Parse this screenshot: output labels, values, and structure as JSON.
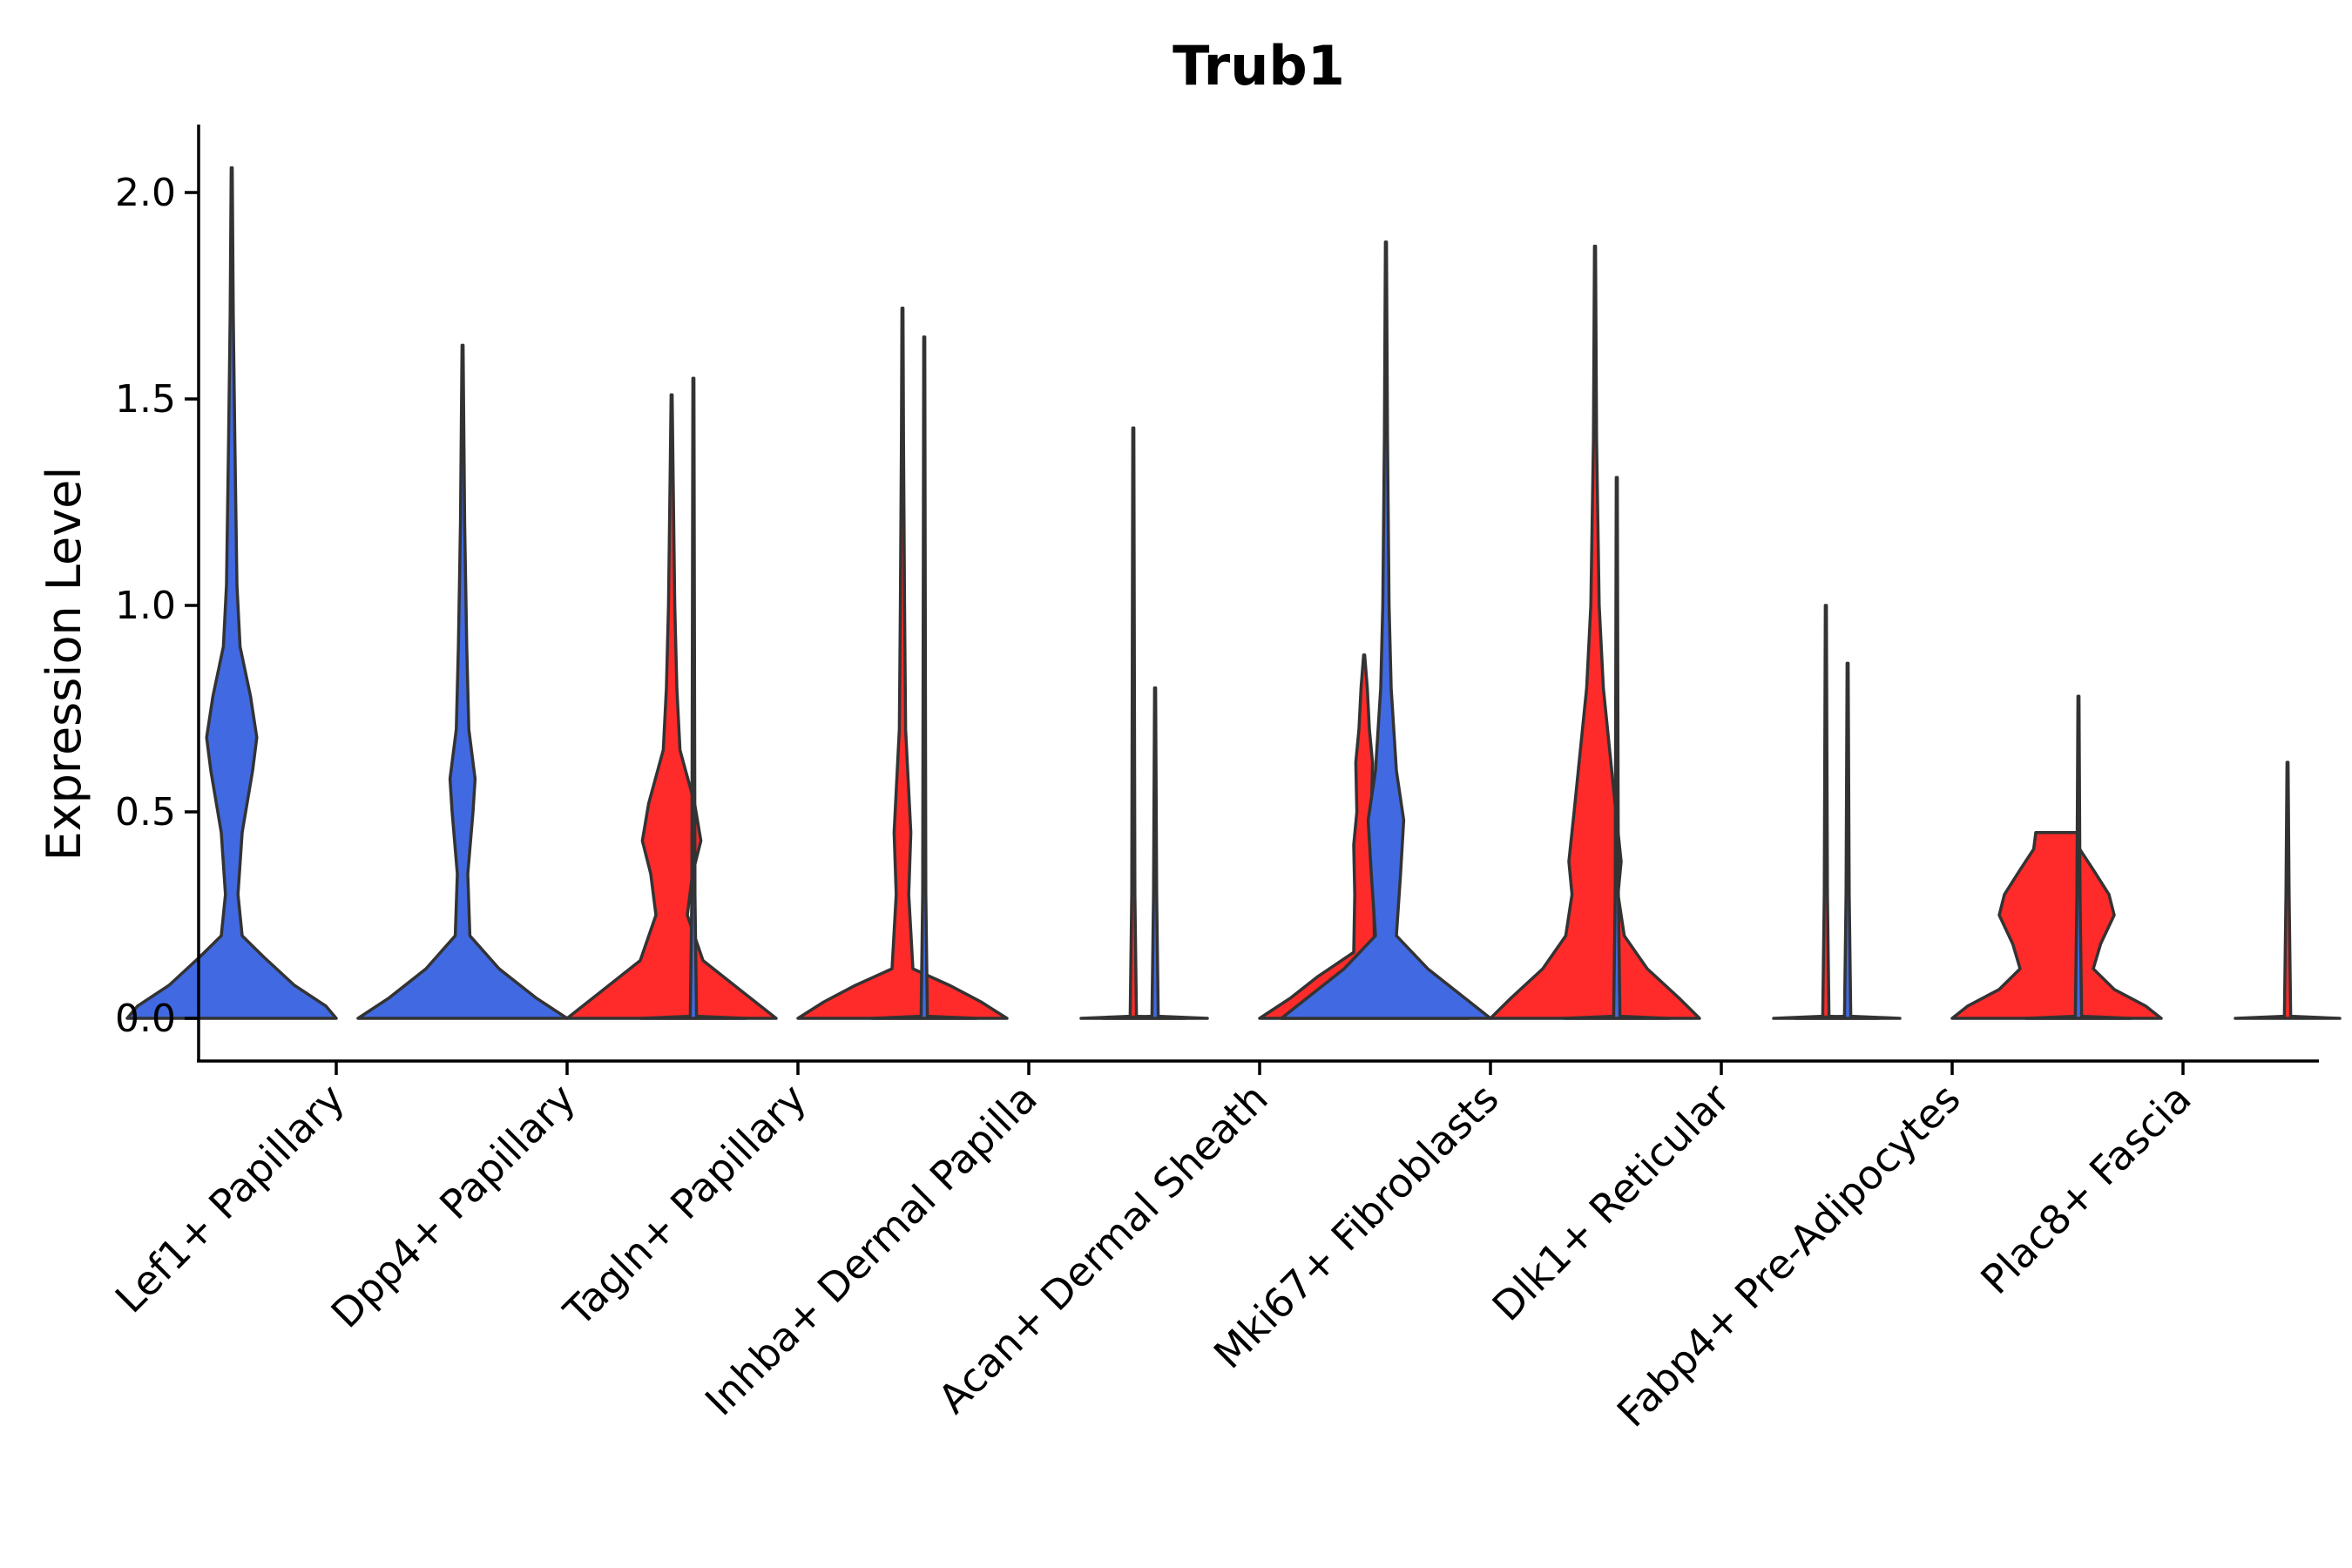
{
  "chart_data": {
    "type": "violin",
    "title": "Trub1",
    "xlabel": "",
    "ylabel": "Expression Level",
    "ylim": [
      -0.1,
      2.17
    ],
    "yticks": [
      0.0,
      0.5,
      1.0,
      1.5,
      2.0
    ],
    "ytick_labels": [
      "0.0",
      "0.5",
      "1.0",
      "1.5",
      "2.0"
    ],
    "groups": [
      "blue",
      "red"
    ],
    "colors": {
      "blue": "#4169E1",
      "red": "#FF2A2A",
      "outline": "#333333"
    },
    "categories": [
      "Lef1+ Papillary",
      "Dpp4+ Papillary",
      "Tagln+ Papillary",
      "Inhba+ Dermal Papilla",
      "Acan+ Dermal Sheath",
      "Mki67+ Fibroblasts",
      "Dlk1+ Reticular",
      "Fabp4+ Pre-Adipocytes",
      "Plac8+ Fascia"
    ],
    "series": [
      {
        "name": "blue",
        "max_values": [
          2.06,
          1.63,
          1.55,
          1.65,
          0.8,
          1.88,
          1.31,
          0.86,
          0.78
        ]
      },
      {
        "name": "red",
        "max_values": [
          null,
          1.51,
          1.72,
          1.43,
          0.88,
          1.87,
          1.0,
          0.45,
          0.62
        ]
      }
    ],
    "violins": [
      {
        "category": 0,
        "group": "blue",
        "max": 2.06,
        "density": [
          [
            0,
            1.0
          ],
          [
            0.03,
            0.9
          ],
          [
            0.08,
            0.6
          ],
          [
            0.15,
            0.3
          ],
          [
            0.2,
            0.1
          ],
          [
            0.3,
            0.06
          ],
          [
            0.45,
            0.1
          ],
          [
            0.6,
            0.2
          ],
          [
            0.68,
            0.24
          ],
          [
            0.78,
            0.18
          ],
          [
            0.9,
            0.08
          ],
          [
            1.05,
            0.05
          ],
          [
            1.4,
            0.03
          ],
          [
            1.7,
            0.015
          ],
          [
            2.06,
            0.005
          ]
        ]
      },
      {
        "category": 1,
        "group": "blue",
        "max": 1.63,
        "density": [
          [
            0,
            1.0
          ],
          [
            0.05,
            0.7
          ],
          [
            0.12,
            0.35
          ],
          [
            0.2,
            0.07
          ],
          [
            0.35,
            0.05
          ],
          [
            0.5,
            0.1
          ],
          [
            0.58,
            0.12
          ],
          [
            0.7,
            0.06
          ],
          [
            0.9,
            0.04
          ],
          [
            1.2,
            0.02
          ],
          [
            1.63,
            0.005
          ]
        ]
      },
      {
        "category": 1,
        "group": "red",
        "max": 1.51,
        "density": [
          [
            0,
            1.0
          ],
          [
            0.06,
            0.7
          ],
          [
            0.14,
            0.3
          ],
          [
            0.25,
            0.15
          ],
          [
            0.35,
            0.2
          ],
          [
            0.43,
            0.28
          ],
          [
            0.52,
            0.22
          ],
          [
            0.65,
            0.08
          ],
          [
            0.8,
            0.05
          ],
          [
            1.0,
            0.03
          ],
          [
            1.3,
            0.015
          ],
          [
            1.51,
            0.005
          ]
        ]
      },
      {
        "category": 2,
        "group": "blue",
        "max": 1.55,
        "density": [
          [
            0,
            0.5
          ],
          [
            0.005,
            0.03
          ],
          [
            0.3,
            0.015
          ],
          [
            1.55,
            0.005
          ]
        ]
      },
      {
        "category": 2,
        "group": "red",
        "max": 1.72,
        "density": [
          [
            0,
            1.0
          ],
          [
            0.04,
            0.75
          ],
          [
            0.08,
            0.45
          ],
          [
            0.12,
            0.1
          ],
          [
            0.3,
            0.06
          ],
          [
            0.45,
            0.08
          ],
          [
            0.5,
            0.07
          ],
          [
            0.7,
            0.03
          ],
          [
            1.0,
            0.02
          ],
          [
            1.4,
            0.01
          ],
          [
            1.72,
            0.005
          ]
        ]
      },
      {
        "category": 3,
        "group": "blue",
        "max": 1.65,
        "density": [
          [
            0,
            0.5
          ],
          [
            0.005,
            0.03
          ],
          [
            0.3,
            0.015
          ],
          [
            1.65,
            0.005
          ]
        ]
      },
      {
        "category": 3,
        "group": "red",
        "max": 1.43,
        "density": [
          [
            0,
            0.5
          ],
          [
            0.005,
            0.03
          ],
          [
            0.3,
            0.015
          ],
          [
            1.43,
            0.005
          ]
        ]
      },
      {
        "category": 4,
        "group": "blue",
        "max": 0.8,
        "density": [
          [
            0,
            0.5
          ],
          [
            0.005,
            0.03
          ],
          [
            0.3,
            0.015
          ],
          [
            0.8,
            0.005
          ]
        ]
      },
      {
        "category": 4,
        "group": "red",
        "max": 0.88,
        "density": [
          [
            0,
            1.0
          ],
          [
            0.05,
            0.7
          ],
          [
            0.1,
            0.45
          ],
          [
            0.16,
            0.1
          ],
          [
            0.3,
            0.09
          ],
          [
            0.42,
            0.1
          ],
          [
            0.5,
            0.07
          ],
          [
            0.62,
            0.08
          ],
          [
            0.7,
            0.05
          ],
          [
            0.8,
            0.03
          ],
          [
            0.88,
            0.005
          ]
        ]
      },
      {
        "category": 5,
        "group": "blue",
        "max": 1.88,
        "density": [
          [
            0,
            1.0
          ],
          [
            0.05,
            0.75
          ],
          [
            0.12,
            0.4
          ],
          [
            0.2,
            0.1
          ],
          [
            0.35,
            0.14
          ],
          [
            0.48,
            0.17
          ],
          [
            0.6,
            0.1
          ],
          [
            0.8,
            0.05
          ],
          [
            1.0,
            0.03
          ],
          [
            1.4,
            0.015
          ],
          [
            1.88,
            0.005
          ]
        ]
      },
      {
        "category": 5,
        "group": "red",
        "max": 1.87,
        "density": [
          [
            0,
            1.0
          ],
          [
            0.05,
            0.8
          ],
          [
            0.12,
            0.5
          ],
          [
            0.2,
            0.28
          ],
          [
            0.3,
            0.22
          ],
          [
            0.38,
            0.25
          ],
          [
            0.5,
            0.2
          ],
          [
            0.65,
            0.14
          ],
          [
            0.8,
            0.08
          ],
          [
            1.0,
            0.04
          ],
          [
            1.4,
            0.015
          ],
          [
            1.87,
            0.005
          ]
        ]
      },
      {
        "category": 6,
        "group": "blue",
        "max": 1.31,
        "density": [
          [
            0,
            0.5
          ],
          [
            0.005,
            0.03
          ],
          [
            0.3,
            0.015
          ],
          [
            1.31,
            0.005
          ]
        ]
      },
      {
        "category": 6,
        "group": "red",
        "max": 1.0,
        "density": [
          [
            0,
            0.5
          ],
          [
            0.005,
            0.03
          ],
          [
            0.3,
            0.015
          ],
          [
            1.0,
            0.005
          ]
        ]
      },
      {
        "category": 7,
        "group": "blue",
        "max": 0.86,
        "density": [
          [
            0,
            0.5
          ],
          [
            0.005,
            0.03
          ],
          [
            0.3,
            0.015
          ],
          [
            0.86,
            0.005
          ]
        ]
      },
      {
        "category": 7,
        "group": "red",
        "max": 0.45,
        "density": [
          [
            0,
            1.0
          ],
          [
            0.03,
            0.85
          ],
          [
            0.07,
            0.55
          ],
          [
            0.12,
            0.35
          ],
          [
            0.18,
            0.42
          ],
          [
            0.25,
            0.55
          ],
          [
            0.3,
            0.5
          ],
          [
            0.36,
            0.35
          ],
          [
            0.41,
            0.22
          ],
          [
            0.45,
            0.2
          ]
        ]
      },
      {
        "category": 8,
        "group": "blue",
        "max": 0.78,
        "density": [
          [
            0,
            0.5
          ],
          [
            0.005,
            0.03
          ],
          [
            0.3,
            0.015
          ],
          [
            0.78,
            0.005
          ]
        ]
      },
      {
        "category": 8,
        "group": "red",
        "max": 0.62,
        "density": [
          [
            0,
            0.5
          ],
          [
            0.005,
            0.03
          ],
          [
            0.3,
            0.015
          ],
          [
            0.62,
            0.005
          ]
        ]
      }
    ]
  }
}
